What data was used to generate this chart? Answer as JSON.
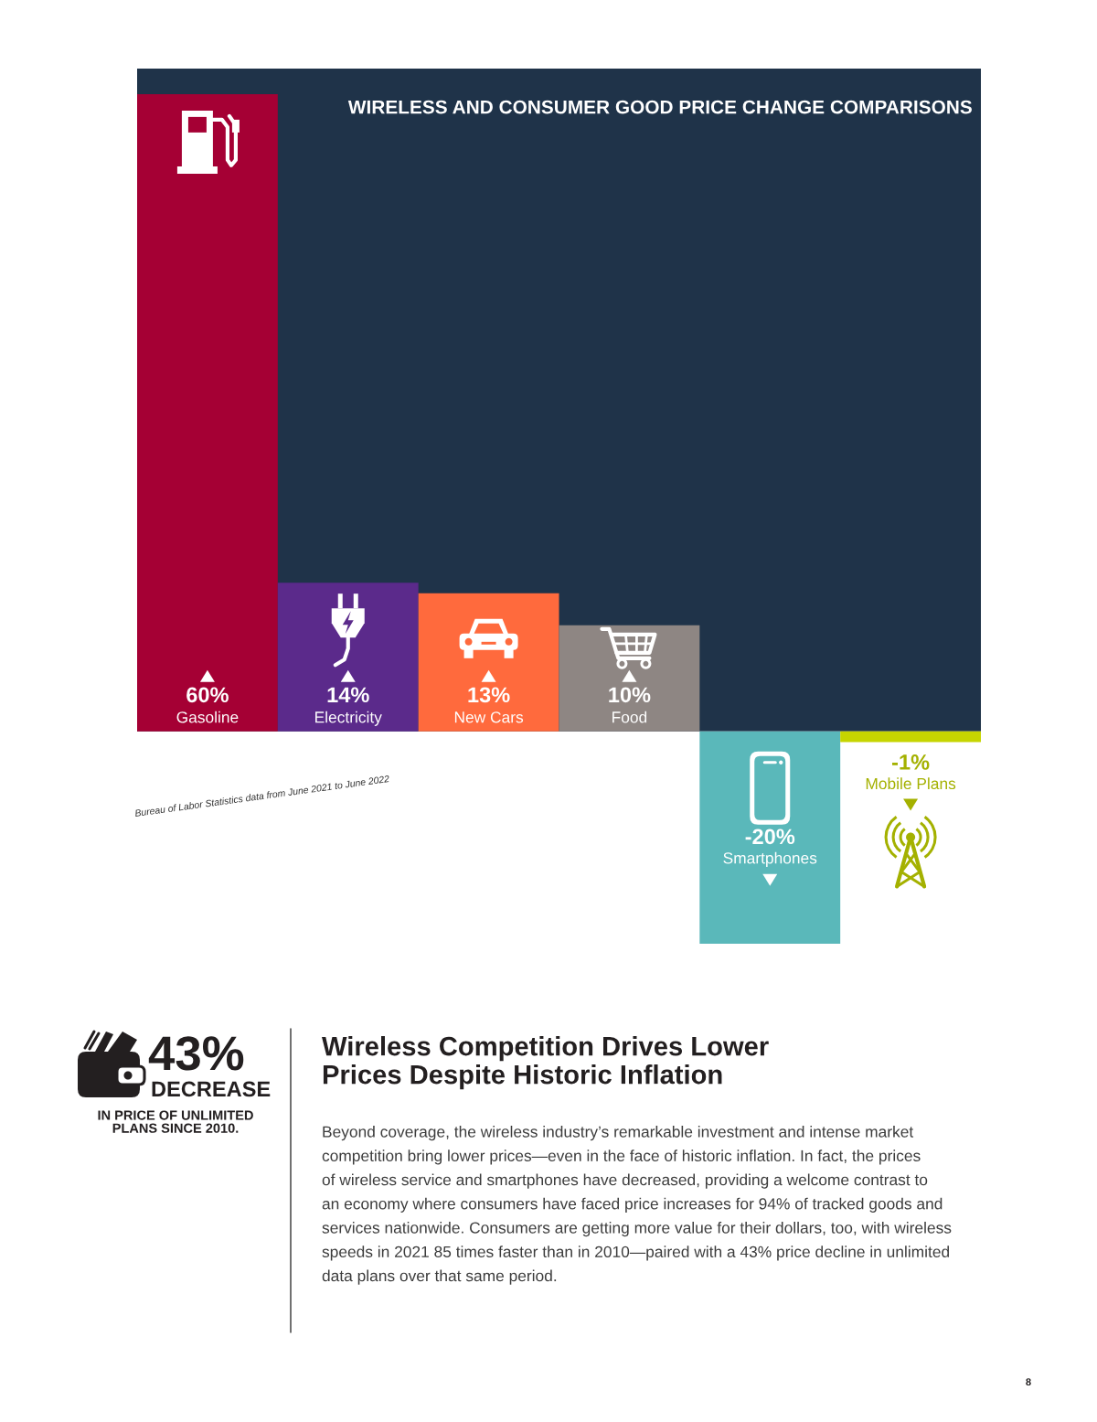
{
  "chart_data": {
    "type": "bar",
    "title": "WIRELESS AND CONSUMER GOOD PRICE CHANGE COMPARISONS",
    "categories": [
      "Gasoline",
      "Electricity",
      "New Cars",
      "Food",
      "Smartphones",
      "Mobile Plans"
    ],
    "values": [
      60,
      14,
      13,
      10,
      -20,
      -1
    ],
    "colors": [
      "#a50034",
      "#5b2a8b",
      "#ff6a3d",
      "#8e8683",
      "#5ab8ba",
      "#c6d500"
    ],
    "value_labels": [
      "60%",
      "14%",
      "13%",
      "10%",
      "-20%",
      "-1%"
    ],
    "annotations": [
      "Bureau of Labor Statistics data from June 2021 to June 2022",
      "43%",
      "DECREASE",
      "IN PRICE OF UNLIMITED\nPLANS SINCE 2010.",
      "Wireless Competition Drives Lower\nPrices Despite Historic Inflation",
      "Beyond coverage, the wireless industry’s remarkable investment and intense market\ncompetition bring lower prices—even in the face of historic inflation. In fact, the prices\nof wireless service and smartphones have decreased, providing a welcome contrast to\nan economy where consumers have faced price increases for 94% of tracked goods and\nservices nationwide. Consumers are getting more value for their dollars, too, with wireless\nspeeds in 2021 85 times faster than in 2010—paired with a 43% price decline in unlimited\ndata plans over that same period.",
      "8"
    ]
  }
}
